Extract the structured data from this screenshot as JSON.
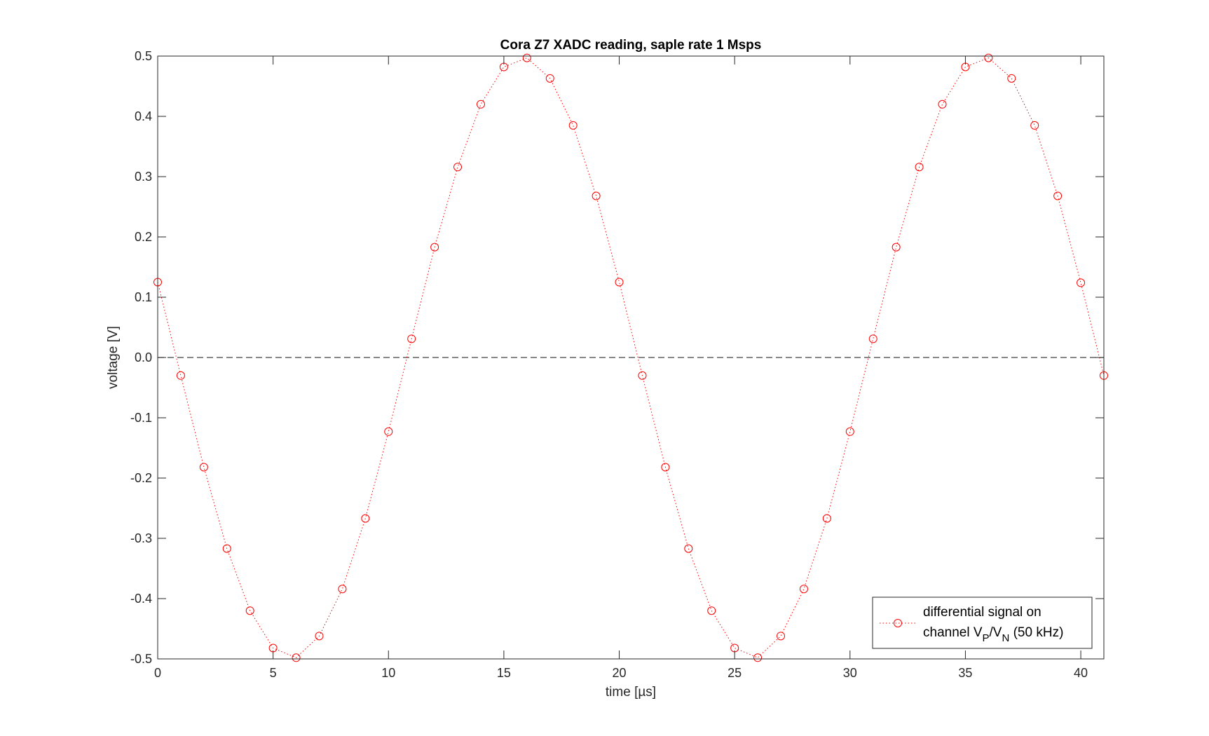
{
  "chart_data": {
    "type": "line",
    "title": "Cora Z7 XADC reading, saple rate 1 Msps",
    "xlabel": "time [µs]",
    "ylabel": "voltage [V]",
    "xlim": [
      0,
      41
    ],
    "ylim": [
      -0.5,
      0.5
    ],
    "xticks": [
      0,
      5,
      10,
      15,
      20,
      25,
      30,
      35,
      40
    ],
    "xtick_labels": [
      "0",
      "5",
      "10",
      "15",
      "20",
      "25",
      "30",
      "35",
      "40"
    ],
    "yticks": [
      -0.5,
      -0.4,
      -0.3,
      -0.2,
      -0.1,
      0.0,
      0.1,
      0.2,
      0.3,
      0.4,
      0.5
    ],
    "ytick_labels": [
      "-0.5",
      "-0.4",
      "-0.3",
      "-0.2",
      "-0.1",
      "0.0",
      "0.1",
      "0.2",
      "0.3",
      "0.4",
      "0.5"
    ],
    "grid": false,
    "legend_position": "bottom-right",
    "reference_line": {
      "y": 0.0,
      "style": "dashed",
      "color": "#404040"
    },
    "series": [
      {
        "legend_line1": "differential signal on",
        "legend_line2_parts": {
          "prefix": "channel V",
          "sub1": "P",
          "mid": "/V",
          "sub2": "N",
          "suffix": " (50 kHz)"
        },
        "color": "#ff0000",
        "line_style": "dotted",
        "marker": "circle",
        "x": [
          0,
          1,
          2,
          3,
          4,
          5,
          6,
          7,
          8,
          9,
          10,
          11,
          12,
          13,
          14,
          15,
          16,
          17,
          18,
          19,
          20,
          21,
          22,
          23,
          24,
          25,
          26,
          27,
          28,
          29,
          30,
          31,
          32,
          33,
          34,
          35,
          36,
          37,
          38,
          39,
          40,
          41
        ],
        "y": [
          0.125,
          -0.03,
          -0.182,
          -0.317,
          -0.42,
          -0.482,
          -0.498,
          -0.462,
          -0.384,
          -0.267,
          -0.123,
          0.031,
          0.183,
          0.316,
          0.42,
          0.482,
          0.497,
          0.463,
          0.385,
          0.268,
          0.125,
          -0.03,
          -0.182,
          -0.317,
          -0.42,
          -0.482,
          -0.498,
          -0.462,
          -0.384,
          -0.267,
          -0.123,
          0.031,
          0.183,
          0.316,
          0.42,
          0.482,
          0.497,
          0.463,
          0.385,
          0.268,
          0.124,
          -0.03
        ]
      }
    ]
  }
}
